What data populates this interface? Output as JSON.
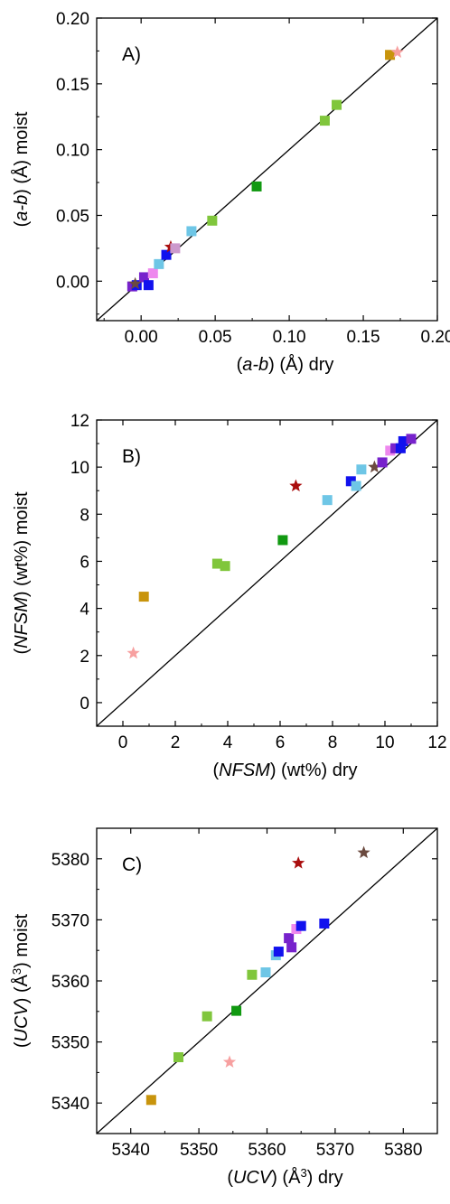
{
  "chart_data": [
    {
      "type": "scatter",
      "panel_label": "A)",
      "xlabel_parts": [
        {
          "t": "(",
          "i": false
        },
        {
          "t": "a-b",
          "i": true
        },
        {
          "t": ") (Å) dry",
          "i": false
        }
      ],
      "ylabel_parts": [
        {
          "t": "(",
          "i": false
        },
        {
          "t": "a-b",
          "i": true
        },
        {
          "t": ") (Å) moist",
          "i": false
        }
      ],
      "xlim": [
        -0.03,
        0.2
      ],
      "ylim": [
        -0.03,
        0.2
      ],
      "xticks": [
        0.0,
        0.05,
        0.1,
        0.15,
        0.2
      ],
      "xtick_labels": [
        "0.00",
        "0.05",
        "0.10",
        "0.15",
        "0.20"
      ],
      "yticks": [
        0.0,
        0.05,
        0.1,
        0.15,
        0.2
      ],
      "ytick_labels": [
        "0.00",
        "0.05",
        "0.10",
        "0.15",
        "0.20"
      ],
      "grid": false,
      "diagonal": true,
      "points": [
        {
          "x": -0.006,
          "y": -0.004,
          "marker": "square",
          "color": "#7722cc"
        },
        {
          "x": -0.003,
          "y": -0.003,
          "marker": "square",
          "color": "#1111ee"
        },
        {
          "x": 0.002,
          "y": 0.003,
          "marker": "square",
          "color": "#7722cc"
        },
        {
          "x": 0.005,
          "y": -0.003,
          "marker": "square",
          "color": "#1111ee"
        },
        {
          "x": -0.004,
          "y": -0.002,
          "marker": "star",
          "color": "#6b4a3f"
        },
        {
          "x": 0.008,
          "y": 0.006,
          "marker": "square",
          "color": "#ee88ee"
        },
        {
          "x": 0.012,
          "y": 0.013,
          "marker": "square",
          "color": "#6ec6e6"
        },
        {
          "x": 0.017,
          "y": 0.02,
          "marker": "square",
          "color": "#1111ee"
        },
        {
          "x": 0.02,
          "y": 0.026,
          "marker": "star",
          "color": "#aa0e0e"
        },
        {
          "x": 0.023,
          "y": 0.025,
          "marker": "square",
          "color": "#cc99cc"
        },
        {
          "x": 0.034,
          "y": 0.038,
          "marker": "square",
          "color": "#6ec6e6"
        },
        {
          "x": 0.048,
          "y": 0.046,
          "marker": "square",
          "color": "#80c63c"
        },
        {
          "x": 0.078,
          "y": 0.072,
          "marker": "square",
          "color": "#119911"
        },
        {
          "x": 0.124,
          "y": 0.122,
          "marker": "square",
          "color": "#80c63c"
        },
        {
          "x": 0.132,
          "y": 0.134,
          "marker": "square",
          "color": "#80c63c"
        },
        {
          "x": 0.168,
          "y": 0.172,
          "marker": "square",
          "color": "#c8940c"
        },
        {
          "x": 0.173,
          "y": 0.174,
          "marker": "star",
          "color": "#f7a0a0"
        }
      ]
    },
    {
      "type": "scatter",
      "panel_label": "B)",
      "xlabel_parts": [
        {
          "t": "(",
          "i": false
        },
        {
          "t": "NFSM",
          "i": true
        },
        {
          "t": ") (wt%) dry",
          "i": false
        }
      ],
      "ylabel_parts": [
        {
          "t": "(",
          "i": false
        },
        {
          "t": "NFSM",
          "i": true
        },
        {
          "t": ") (wt%) moist",
          "i": false
        }
      ],
      "xlim": [
        -1,
        12
      ],
      "ylim": [
        -1,
        12
      ],
      "xticks": [
        0,
        2,
        4,
        6,
        8,
        10,
        12
      ],
      "xtick_labels": [
        "0",
        "2",
        "4",
        "6",
        "8",
        "10",
        "12"
      ],
      "yticks": [
        0,
        2,
        4,
        6,
        8,
        10,
        12
      ],
      "ytick_labels": [
        "0",
        "2",
        "4",
        "6",
        "8",
        "10",
        "12"
      ],
      "grid": false,
      "diagonal": true,
      "points": [
        {
          "x": 0.4,
          "y": 2.1,
          "marker": "star",
          "color": "#f7a0a0"
        },
        {
          "x": 0.8,
          "y": 4.5,
          "marker": "square",
          "color": "#c8940c"
        },
        {
          "x": 3.6,
          "y": 5.9,
          "marker": "square",
          "color": "#80c63c"
        },
        {
          "x": 3.9,
          "y": 5.8,
          "marker": "square",
          "color": "#80c63c"
        },
        {
          "x": 6.1,
          "y": 6.9,
          "marker": "square",
          "color": "#119911"
        },
        {
          "x": 6.6,
          "y": 9.2,
          "marker": "star",
          "color": "#aa0e0e"
        },
        {
          "x": 7.8,
          "y": 8.6,
          "marker": "square",
          "color": "#6ec6e6"
        },
        {
          "x": 8.7,
          "y": 9.4,
          "marker": "square",
          "color": "#1111ee"
        },
        {
          "x": 8.9,
          "y": 9.2,
          "marker": "square",
          "color": "#6ec6e6"
        },
        {
          "x": 9.1,
          "y": 9.9,
          "marker": "square",
          "color": "#6ec6e6"
        },
        {
          "x": 9.6,
          "y": 10.0,
          "marker": "star",
          "color": "#6b4a3f"
        },
        {
          "x": 9.9,
          "y": 10.2,
          "marker": "square",
          "color": "#7722cc"
        },
        {
          "x": 10.2,
          "y": 10.7,
          "marker": "square",
          "color": "#ee88ee"
        },
        {
          "x": 10.4,
          "y": 10.8,
          "marker": "square",
          "color": "#7722cc"
        },
        {
          "x": 10.6,
          "y": 10.8,
          "marker": "square",
          "color": "#1111ee"
        },
        {
          "x": 10.7,
          "y": 11.1,
          "marker": "square",
          "color": "#1111ee"
        },
        {
          "x": 11.0,
          "y": 11.2,
          "marker": "square",
          "color": "#7722cc"
        }
      ]
    },
    {
      "type": "scatter",
      "panel_label": "C)",
      "xlabel_parts": [
        {
          "t": "(",
          "i": false
        },
        {
          "t": "UCV",
          "i": true
        },
        {
          "t": ") (Å",
          "i": false
        },
        {
          "t": "3",
          "i": false,
          "sup": true
        },
        {
          "t": ") dry",
          "i": false
        }
      ],
      "ylabel_parts": [
        {
          "t": "(",
          "i": false
        },
        {
          "t": "UCV",
          "i": true
        },
        {
          "t": ") (Å",
          "i": false
        },
        {
          "t": "3",
          "i": false,
          "sup": true
        },
        {
          "t": ") moist",
          "i": false
        }
      ],
      "xlim": [
        5335,
        5385
      ],
      "ylim": [
        5335,
        5385
      ],
      "xticks": [
        5340,
        5350,
        5360,
        5370,
        5380
      ],
      "xtick_labels": [
        "5340",
        "5350",
        "5360",
        "5370",
        "5380"
      ],
      "yticks": [
        5340,
        5350,
        5360,
        5370,
        5380
      ],
      "ytick_labels": [
        "5340",
        "5350",
        "5360",
        "5370",
        "5380"
      ],
      "grid": false,
      "diagonal": true,
      "points": [
        {
          "x": 5343.0,
          "y": 5340.5,
          "marker": "square",
          "color": "#c8940c"
        },
        {
          "x": 5347.0,
          "y": 5347.5,
          "marker": "square",
          "color": "#80c63c"
        },
        {
          "x": 5351.2,
          "y": 5354.2,
          "marker": "square",
          "color": "#80c63c"
        },
        {
          "x": 5354.5,
          "y": 5346.7,
          "marker": "star",
          "color": "#f7a0a0"
        },
        {
          "x": 5355.5,
          "y": 5355.1,
          "marker": "square",
          "color": "#119911"
        },
        {
          "x": 5357.8,
          "y": 5361.0,
          "marker": "square",
          "color": "#80c63c"
        },
        {
          "x": 5359.8,
          "y": 5361.4,
          "marker": "square",
          "color": "#6ec6e6"
        },
        {
          "x": 5361.3,
          "y": 5364.2,
          "marker": "square",
          "color": "#6ec6e6"
        },
        {
          "x": 5361.7,
          "y": 5364.8,
          "marker": "square",
          "color": "#1111ee"
        },
        {
          "x": 5363.2,
          "y": 5367.0,
          "marker": "square",
          "color": "#7722cc"
        },
        {
          "x": 5363.6,
          "y": 5365.5,
          "marker": "square",
          "color": "#7722cc"
        },
        {
          "x": 5364.3,
          "y": 5368.5,
          "marker": "square",
          "color": "#ee88ee"
        },
        {
          "x": 5364.6,
          "y": 5379.3,
          "marker": "star",
          "color": "#aa0e0e"
        },
        {
          "x": 5365.0,
          "y": 5369.0,
          "marker": "square",
          "color": "#1111ee"
        },
        {
          "x": 5368.4,
          "y": 5369.4,
          "marker": "square",
          "color": "#1111ee"
        },
        {
          "x": 5374.2,
          "y": 5381.0,
          "marker": "star",
          "color": "#6b4a3f"
        }
      ]
    }
  ]
}
